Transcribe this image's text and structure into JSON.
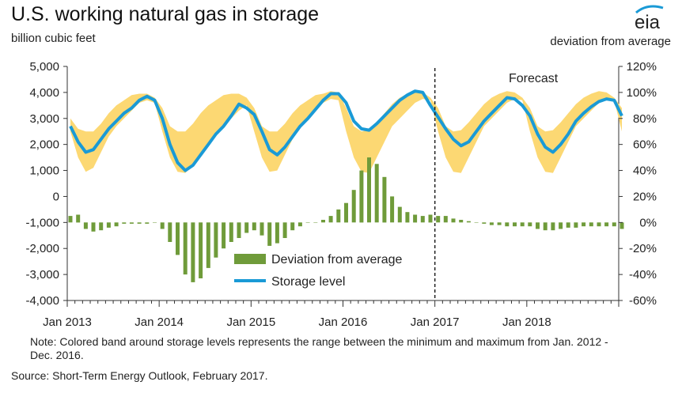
{
  "header": {
    "title": "U.S. working natural gas in storage",
    "left_unit": "billion cubic feet",
    "right_unit": "deviation  from average"
  },
  "logo": {
    "text": "eia"
  },
  "annotation": {
    "forecast": "Forecast"
  },
  "legend": {
    "deviation": "Deviation from average",
    "storage": "Storage level"
  },
  "note": "Note:  Colored band around storage levels represents the range between the minimum  and maximum  from Jan. 2012 - Dec. 2016.",
  "source": "Source: Short-Term Energy Outlook, February 2017.",
  "colors": {
    "band": "#fcd873",
    "storage": "#1a9ad6",
    "deviation": "#6f9b3a",
    "axis": "#333333"
  },
  "chart_data": {
    "type": "line",
    "y_left_ticks": [
      "5,000",
      "4,000",
      "3,000",
      "2,000",
      "1,000",
      "0",
      "-1,000",
      "-2,000",
      "-3,000",
      "-4,000"
    ],
    "y_right_ticks": [
      "120%",
      "100%",
      "80%",
      "60%",
      "40%",
      "20%",
      "0%",
      "-20%",
      "-40%",
      "-60%"
    ],
    "x_ticks": [
      "Jan 2013",
      "Jan 2014",
      "Jan 2015",
      "Jan 2016",
      "Jan 2017",
      "Jan 2018"
    ],
    "y_left_range": [
      -4000,
      5000
    ],
    "y_right_range": [
      -60,
      120
    ],
    "start_month": "Jan 2013",
    "forecast_start": "Jan 2017",
    "series": [
      {
        "name": "Storage level",
        "axis": "left",
        "values": [
          2700,
          2100,
          1700,
          1800,
          2200,
          2600,
          2900,
          3200,
          3400,
          3700,
          3850,
          3700,
          3000,
          2000,
          1300,
          1000,
          1200,
          1600,
          2000,
          2400,
          2700,
          3100,
          3550,
          3400,
          3150,
          2500,
          1800,
          1600,
          1900,
          2300,
          2700,
          3000,
          3350,
          3700,
          3950,
          3950,
          3600,
          2900,
          2600,
          2550,
          2800,
          3100,
          3400,
          3700,
          3900,
          4050,
          4000,
          3500,
          3050,
          2600,
          2200,
          1950,
          2100,
          2500,
          2900,
          3200,
          3500,
          3800,
          3750,
          3500,
          3100,
          2400,
          1900,
          1700,
          2000,
          2400,
          2900,
          3200,
          3450,
          3650,
          3750,
          3700,
          3100
        ]
      },
      {
        "name": "Deviation from average",
        "axis": "right",
        "values": [
          5,
          6,
          -5,
          -7,
          -6,
          -4,
          -3,
          -1,
          -1,
          -1,
          -1,
          0,
          -5,
          -15,
          -25,
          -40,
          -46,
          -43,
          -35,
          -27,
          -20,
          -15,
          -12,
          -8,
          -6,
          -10,
          -18,
          -16,
          -12,
          -6,
          -3,
          0,
          0,
          2,
          5,
          10,
          15,
          25,
          40,
          50,
          45,
          35,
          20,
          12,
          8,
          6,
          5,
          6,
          5,
          5,
          3,
          2,
          1,
          0,
          -1,
          -2,
          -2,
          -3,
          -3,
          -3,
          -3,
          -5,
          -6,
          -6,
          -5,
          -4,
          -4,
          -3,
          -3,
          -3,
          -3,
          -3,
          -5
        ]
      }
    ],
    "band": {
      "name": "Range between the minimum and maximum from Jan. 2012 - Dec. 2016",
      "min": [
        2500,
        1500,
        950,
        1100,
        1700,
        2300,
        2700,
        3000,
        3300,
        3600,
        3700,
        3600,
        2500,
        1500,
        950,
        900,
        1200,
        1600,
        2000,
        2400,
        2700,
        3000,
        3300,
        3500,
        2500,
        1500,
        950,
        1000,
        1600,
        2200,
        2700,
        3000,
        3300,
        3600,
        3750,
        3700,
        2500,
        1500,
        950,
        900,
        1500,
        2100,
        2700,
        3000,
        3300,
        3600,
        3750,
        3700,
        2500,
        1500,
        950,
        900,
        1500,
        2100,
        2700,
        3000,
        3300,
        3600,
        3750,
        3700,
        2500,
        1500,
        950,
        900,
        1500,
        2100,
        2700,
        3000,
        3300,
        3600,
        3750,
        3700,
        2500
      ],
      "max": [
        3000,
        2600,
        2500,
        2500,
        2800,
        3200,
        3500,
        3700,
        3900,
        3950,
        3950,
        3800,
        3400,
        2700,
        2500,
        2500,
        2800,
        3200,
        3500,
        3700,
        3900,
        3950,
        3950,
        3800,
        3400,
        2700,
        2500,
        2500,
        2800,
        3200,
        3500,
        3700,
        3900,
        3950,
        4050,
        4000,
        3400,
        2700,
        2500,
        2550,
        2850,
        3200,
        3550,
        3800,
        3950,
        4050,
        4000,
        3800,
        3400,
        2700,
        2500,
        2550,
        2850,
        3200,
        3550,
        3800,
        3950,
        4050,
        4000,
        3800,
        3400,
        2700,
        2500,
        2550,
        2850,
        3200,
        3550,
        3800,
        3950,
        4050,
        4000,
        3800,
        3400
      ]
    }
  }
}
